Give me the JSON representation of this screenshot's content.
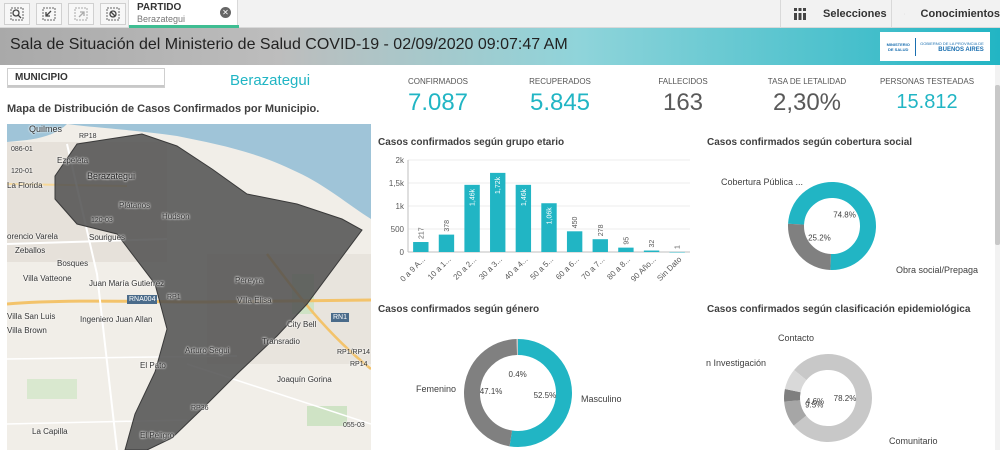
{
  "toolbar": {
    "filter_title": "PARTIDO",
    "filter_value": "Berazategui",
    "selections_label": "Selecciones",
    "insights_label": "Conocimientos"
  },
  "banner": {
    "title": "Sala de Situación del Ministerio de Salud COVID-19 - 02/09/2020 09:07:47 AM",
    "logo_small": "MINISTERIO DE SALUD",
    "logo_big": "BUENOS AIRES",
    "logo_caption": "GOBIERNO DE LA PROVINCIA DE"
  },
  "filter": {
    "municipio_label": "MUNICIPIO",
    "selected_name": "Berazategui"
  },
  "map": {
    "title": "Mapa de Distribución de Casos Confirmados por Municipio.",
    "labels": {
      "quilmes": "Quilmes",
      "rp18": "RP18",
      "c086": "086-01",
      "ezpeleta": "Ezpeleta",
      "c120": "120-01",
      "berazategui": "Berazategui",
      "laflorida": "La Florida",
      "platanos": "Plátanos",
      "c1203": "120-03",
      "hudson": "Hudson",
      "varela": "orencio Varela",
      "sourigues": "Sourigues",
      "zeballos": "Zeballos",
      "bosques": "Bosques",
      "vatteone": "Villa Vatteone",
      "gutierrez": "Juan María Gutierrez",
      "pereyra": "Pereyra",
      "rna004": "RNA004",
      "rp1": "RP1",
      "villaelisa": "Villa Elisa",
      "sanluis": "Villa San Luis",
      "allan": "Ingeniero Juan Allan",
      "rn1": "RN1",
      "villabrown": "Villa Brown",
      "citybell": "City Bell",
      "transradio": "Transradio",
      "seguro": "Arturo Segui",
      "rp1rp14": "RP1/RP14",
      "rp14": "RP14",
      "elpato": "El Pato",
      "gorina": "Joaquín Gorina",
      "rp36": "RP36",
      "lacapilla": "La Capilla",
      "elpeligro": "El Peligro",
      "c055": "055-03"
    }
  },
  "kpis": [
    {
      "label": "CONFIRMADOS",
      "value": "7.087",
      "color": "#21b5c4"
    },
    {
      "label": "RECUPERADOS",
      "value": "5.845",
      "color": "#21b5c4"
    },
    {
      "label": "FALLECIDOS",
      "value": "163",
      "color": "#595959"
    },
    {
      "label": "TASA DE LETALIDAD",
      "value": "2,30%",
      "color": "#595959"
    },
    {
      "label": "PERSONAS TESTEADAS",
      "value": "15.812",
      "color": "#21b5c4"
    }
  ],
  "chart_data": [
    {
      "type": "bar",
      "title": "Casos confirmados según grupo etario",
      "categories": [
        "0 a 9 A...",
        "10 a 1...",
        "20 a 2...",
        "30 a 3...",
        "40 a 4...",
        "50 a 5...",
        "60 a 6...",
        "70 a 7...",
        "80 a 8...",
        "90 Año...",
        "Sin Dato"
      ],
      "values": [
        217,
        378,
        1460,
        1720,
        1460,
        1060,
        450,
        278,
        95,
        32,
        1
      ],
      "value_labels": [
        "217",
        "378",
        "1,46k",
        "1,72k",
        "1,46k",
        "1,06k",
        "450",
        "278",
        "95",
        "32",
        "1"
      ],
      "yticks": [
        "0",
        "500",
        "1k",
        "1,5k",
        "2k"
      ],
      "ylim": [
        0,
        2000
      ],
      "color": "#21b5c4"
    },
    {
      "type": "pie",
      "title": "Casos confirmados según cobertura social",
      "slices": [
        {
          "name": "Obra social/Prepaga",
          "value": 74.8,
          "label": "74.8%",
          "color": "#21b5c4"
        },
        {
          "name": "Cobertura Pública ...",
          "value": 25.2,
          "label": "25.2%",
          "color": "#808080"
        }
      ]
    },
    {
      "type": "pie",
      "title": "Casos confirmados según género",
      "slices": [
        {
          "name": "Masculino",
          "value": 52.5,
          "label": "52.5%",
          "color": "#21b5c4"
        },
        {
          "name": "Femenino",
          "value": 47.1,
          "label": "47.1%",
          "color": "#808080"
        },
        {
          "name": "",
          "value": 0.4,
          "label": "0.4%",
          "color": "#c8c8c8"
        }
      ]
    },
    {
      "type": "pie",
      "title": "Casos confirmados según clasificación epidemiológica",
      "slices": [
        {
          "name": "Comunitario",
          "value": 78.2,
          "label": "78.2%",
          "color": "#c8c8c8"
        },
        {
          "name": "En Investigación",
          "value": 9.5,
          "label": "9.5%",
          "color": "#a6a6a6"
        },
        {
          "name": "Contacto",
          "value": 4.6,
          "label": "4.6%",
          "color": "#7f7f7f"
        },
        {
          "name": "",
          "value": 7.7,
          "label": "",
          "color": "#d9d9d9"
        }
      ]
    }
  ]
}
